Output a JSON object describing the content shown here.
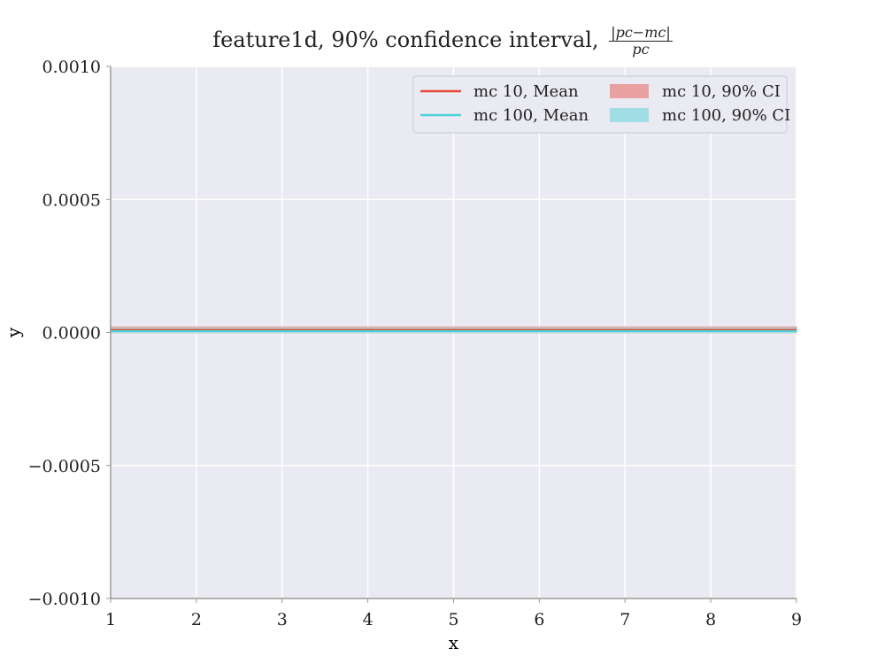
{
  "chart_data": {
    "type": "line",
    "title": {
      "text": "feature1d, 90% confidence interval,",
      "fraction_numerator": "|pc−mc|",
      "fraction_denominator": "pc"
    },
    "xlabel": "x",
    "ylabel": "y",
    "xlim": [
      1,
      9
    ],
    "ylim": [
      -0.001,
      0.001
    ],
    "xticks": [
      1,
      2,
      3,
      4,
      5,
      6,
      7,
      8,
      9
    ],
    "xtick_labels": [
      "1",
      "2",
      "3",
      "4",
      "5",
      "6",
      "7",
      "8",
      "9"
    ],
    "yticks": [
      -0.001,
      -0.0005,
      0.0,
      0.0005,
      0.001
    ],
    "ytick_labels": [
      "−0.0010",
      "−0.0005",
      "0.0000",
      "0.0005",
      "0.0010"
    ],
    "grid": true,
    "legend_position": "top-right",
    "x": [
      1,
      2,
      3,
      4,
      5,
      6,
      7,
      8,
      9
    ],
    "series": [
      {
        "name": "mc 10, Mean",
        "kind": "line",
        "color": "#e24a33",
        "values": [
          1e-05,
          1e-05,
          1e-05,
          1e-05,
          1e-05,
          1e-05,
          1e-05,
          1e-05,
          1e-05
        ]
      },
      {
        "name": "mc 100, Mean",
        "kind": "line",
        "color": "#4dd0d8",
        "values": [
          5e-06,
          5e-06,
          5e-06,
          5e-06,
          5e-06,
          5e-06,
          5e-06,
          5e-06,
          5e-06
        ]
      },
      {
        "name": "mc 10, 90% CI",
        "kind": "band",
        "color": "#e8a0a0",
        "lower": [
          0.0,
          0.0,
          0.0,
          0.0,
          0.0,
          0.0,
          0.0,
          0.0,
          0.0
        ],
        "upper": [
          2e-05,
          2e-05,
          2e-05,
          2e-05,
          2e-05,
          2e-05,
          2e-05,
          2e-05,
          2e-05
        ]
      },
      {
        "name": "mc 100, 90% CI",
        "kind": "band",
        "color": "#a0dde4",
        "lower": [
          0.0,
          0.0,
          0.0,
          0.0,
          0.0,
          0.0,
          0.0,
          0.0,
          0.0
        ],
        "upper": [
          1.5e-05,
          1.5e-05,
          1.5e-05,
          1.5e-05,
          1.5e-05,
          1.5e-05,
          1.5e-05,
          1.5e-05,
          1.5e-05
        ]
      }
    ],
    "colors": {
      "background": "#eaeaf2",
      "grid": "#ffffff",
      "axis": "#999999"
    }
  }
}
